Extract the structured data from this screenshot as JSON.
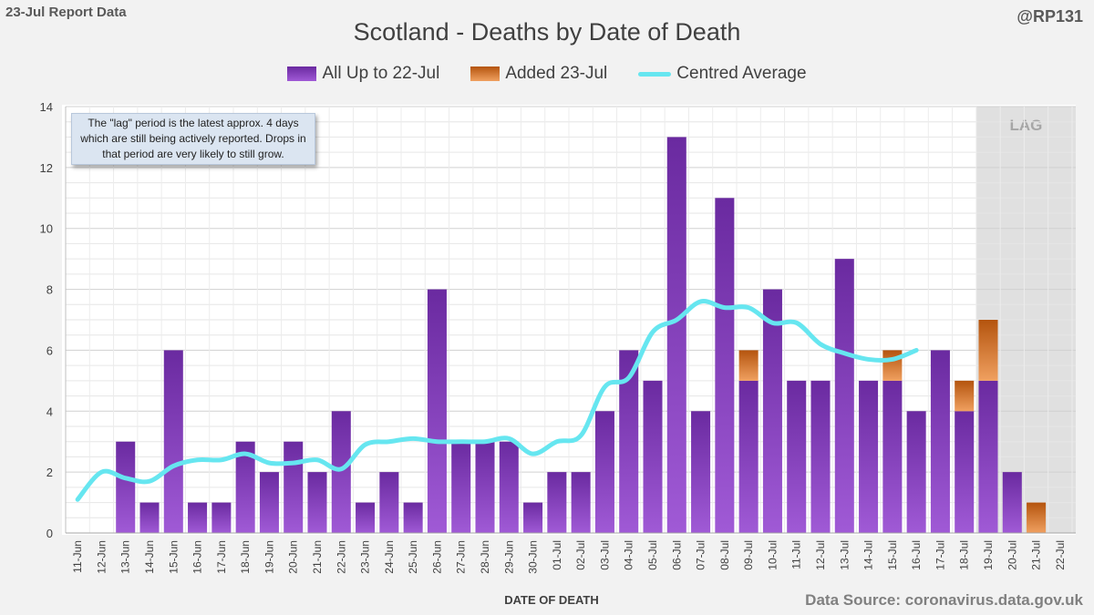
{
  "header": {
    "report_label": "23-Jul Report Data",
    "handle": "@RP131"
  },
  "colors": {
    "all_up_to": "#7030a0",
    "added": "#c55a11",
    "average": "#66e6f0",
    "lag_shade": "#e0e0e0",
    "grid": "#d9d9d9"
  },
  "note": "The \"lag\" period is the latest approx. 4 days which are still being actively reported.  Drops in that period are very likely to still grow.",
  "source": "Data Source: coronavirus.data.gov.uk",
  "chart_data": {
    "type": "bar",
    "stacked": true,
    "title": "Scotland - Deaths by Date of Death",
    "xlabel": "DATE OF DEATH",
    "ylabel": "",
    "ylim": [
      0,
      14
    ],
    "yticks": [
      0,
      2,
      4,
      6,
      8,
      10,
      12,
      14
    ],
    "grid": true,
    "legend_position": "top-center",
    "lag_label": "LAG",
    "lag_start": "19-Jul",
    "categories": [
      "11-Jun",
      "12-Jun",
      "13-Jun",
      "14-Jun",
      "15-Jun",
      "16-Jun",
      "17-Jun",
      "18-Jun",
      "19-Jun",
      "20-Jun",
      "21-Jun",
      "22-Jun",
      "23-Jun",
      "24-Jun",
      "25-Jun",
      "26-Jun",
      "27-Jun",
      "28-Jun",
      "29-Jun",
      "30-Jun",
      "01-Jul",
      "02-Jul",
      "03-Jul",
      "04-Jul",
      "05-Jul",
      "06-Jul",
      "07-Jul",
      "08-Jul",
      "09-Jul",
      "10-Jul",
      "11-Jul",
      "12-Jul",
      "13-Jul",
      "14-Jul",
      "15-Jul",
      "16-Jul",
      "17-Jul",
      "18-Jul",
      "19-Jul",
      "20-Jul",
      "21-Jul",
      "22-Jul"
    ],
    "series": [
      {
        "name": "All Up to 22-Jul",
        "type": "bar",
        "values": [
          0,
          0,
          3,
          1,
          6,
          1,
          1,
          3,
          2,
          3,
          2,
          4,
          1,
          2,
          1,
          8,
          3,
          3,
          3,
          1,
          2,
          2,
          4,
          6,
          5,
          13,
          4,
          11,
          5,
          8,
          5,
          5,
          9,
          5,
          5,
          4,
          6,
          4,
          5,
          2,
          0,
          0
        ]
      },
      {
        "name": "Added 23-Jul",
        "type": "bar",
        "values": [
          0,
          0,
          0,
          0,
          0,
          0,
          0,
          0,
          0,
          0,
          0,
          0,
          0,
          0,
          0,
          0,
          0,
          0,
          0,
          0,
          0,
          0,
          0,
          0,
          0,
          0,
          0,
          0,
          1,
          0,
          0,
          0,
          0,
          0,
          1,
          0,
          0,
          1,
          2,
          0,
          1,
          0
        ]
      },
      {
        "name": "Centred Average",
        "type": "line",
        "values": [
          1.1,
          2.0,
          1.8,
          1.7,
          2.2,
          2.4,
          2.4,
          2.6,
          2.3,
          2.3,
          2.4,
          2.1,
          2.9,
          3.0,
          3.1,
          3.0,
          3.0,
          3.0,
          3.1,
          2.6,
          3.0,
          3.2,
          4.8,
          5.1,
          6.6,
          7.0,
          7.6,
          7.4,
          7.4,
          6.9,
          6.9,
          6.2,
          5.9,
          5.7,
          5.7,
          6.0,
          null,
          null,
          null,
          null,
          null,
          null
        ]
      }
    ]
  }
}
